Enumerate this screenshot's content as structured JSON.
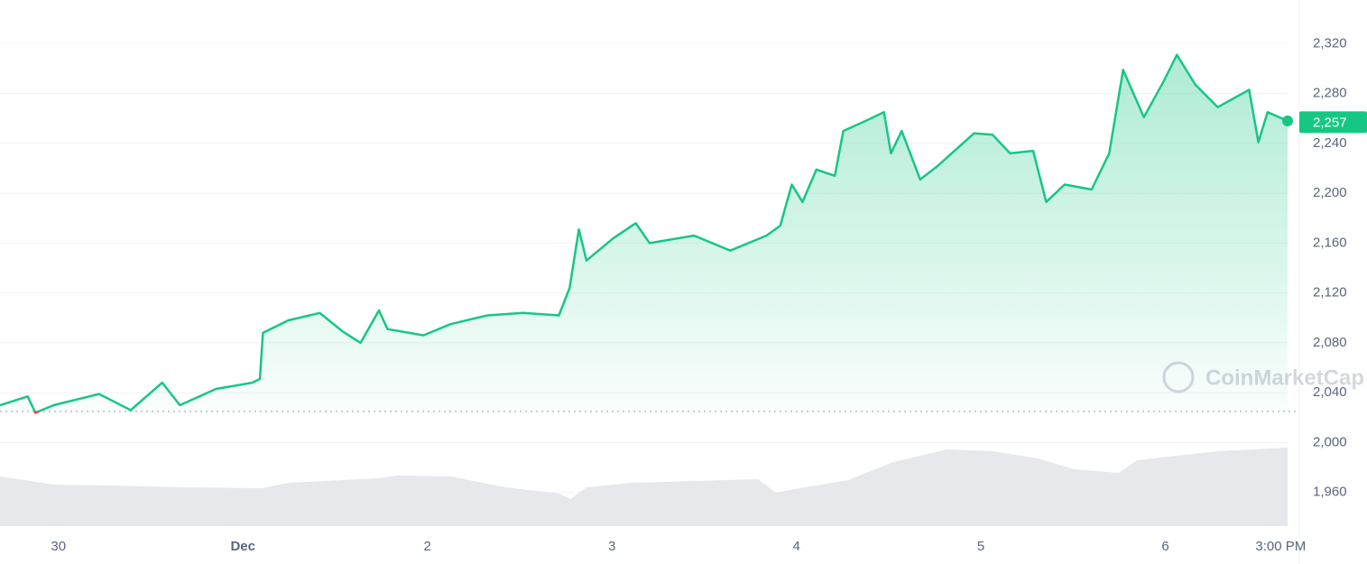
{
  "chart_data": {
    "type": "line",
    "x": [
      -7.6,
      -4,
      -3,
      -0.6,
      4,
      5.3,
      9.4,
      13.5,
      15.8,
      20.5,
      25.2,
      26.2,
      26.6,
      29.9,
      34,
      37,
      39.3,
      41.7,
      42.8,
      47.5,
      51,
      55.8,
      60.4,
      65.1,
      66.5,
      67.7,
      68.7,
      72.2,
      75.1,
      76.9,
      82.7,
      87.4,
      92.1,
      93.9,
      95.4,
      96.8,
      98.6,
      101,
      102.1,
      105,
      107.4,
      108.3,
      109.7,
      112.1,
      114.4,
      119.1,
      121.5,
      123.8,
      126.8,
      128.5,
      130.9,
      134.4,
      136.7,
      138.5,
      141.2,
      143.8,
      145.5,
      147.9,
      150.8,
      154.9,
      156.1,
      157.3,
      159.9
    ],
    "values": [
      2030,
      2037,
      2024,
      2030,
      2037,
      2039,
      2026,
      2048,
      2030,
      2043,
      2048,
      2051,
      2088,
      2098,
      2104,
      2089,
      2080,
      2106,
      2091,
      2086,
      2095,
      2102,
      2104,
      2102,
      2124,
      2171,
      2146,
      2164,
      2176,
      2160,
      2166,
      2154,
      2166,
      2174,
      2207,
      2193,
      2219,
      2214,
      2250,
      2258,
      2265,
      2232,
      2250,
      2211,
      2222,
      2248,
      2247,
      2232,
      2234,
      2193,
      2207,
      2203,
      2232,
      2299,
      2261,
      2290,
      2311,
      2287,
      2269,
      2283,
      2241,
      2265,
      2258
    ],
    "color": "#16c784",
    "color_down": "#ea3943",
    "baseline": 2025,
    "last_price": 2257,
    "last_price_label": "2,257",
    "xlim": [
      -7.6,
      159.9
    ],
    "ylim": [
      1933,
      2355
    ],
    "xticks": [
      {
        "value": 0,
        "label": "30"
      },
      {
        "value": 24,
        "label": "Dec"
      },
      {
        "value": 48,
        "label": "2"
      },
      {
        "value": 72,
        "label": "3"
      },
      {
        "value": 96,
        "label": "4"
      },
      {
        "value": 120,
        "label": "5"
      },
      {
        "value": 144,
        "label": "6"
      },
      {
        "value": 159,
        "label": "3:00 PM"
      }
    ],
    "yticks": [
      {
        "value": 1960,
        "label": "1,960"
      },
      {
        "value": 2000,
        "label": "2,000"
      },
      {
        "value": 2040,
        "label": "2,040"
      },
      {
        "value": 2080,
        "label": "2,080"
      },
      {
        "value": 2120,
        "label": "2,120"
      },
      {
        "value": 2160,
        "label": "2,160"
      },
      {
        "value": 2200,
        "label": "2,200"
      },
      {
        "value": 2240,
        "label": "2,240"
      },
      {
        "value": 2280,
        "label": "2,280"
      },
      {
        "value": 2320,
        "label": "2,320"
      }
    ],
    "grid": true,
    "watermark": "CoinMarketCap"
  }
}
